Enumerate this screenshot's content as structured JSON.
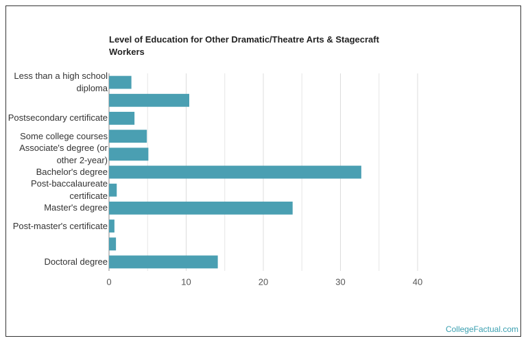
{
  "chart_data": {
    "type": "barh",
    "title": "Level of Education for Other Dramatic/Theatre Arts & Stagecraft Workers",
    "categories": [
      "Less than a high school diploma",
      null,
      "Postsecondary certificate",
      "Some college courses",
      "Associate's degree (or other 2-year)",
      "Bachelor's degree",
      "Post-baccalaureate certificate",
      "Master's degree",
      "Post-master's certificate",
      null,
      "Doctoral degree"
    ],
    "values": [
      2.9,
      10.4,
      3.3,
      4.9,
      5.1,
      32.7,
      1.0,
      23.8,
      0.7,
      0.9,
      14.1
    ],
    "color": "#4a9fb2",
    "xlim": [
      0,
      40
    ],
    "xticks": [
      0,
      10,
      20,
      30,
      40
    ],
    "minor_xticks": [
      5,
      15,
      25,
      35
    ],
    "grid": true
  },
  "source": "CollegeFactual.com"
}
